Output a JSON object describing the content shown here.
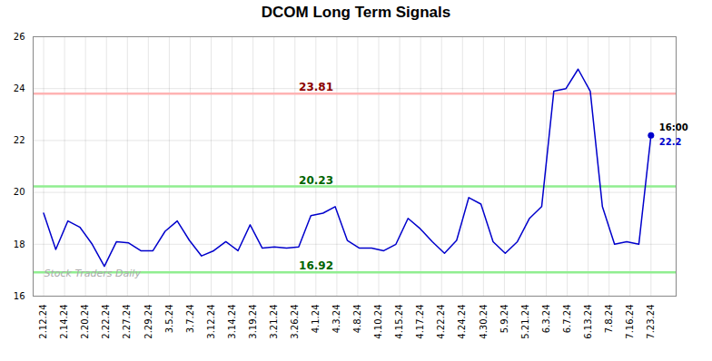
{
  "chart_data": {
    "type": "line",
    "title": "DCOM Long Term Signals",
    "x": [
      0,
      0.58,
      1.16,
      1.74,
      2.32,
      2.9,
      3.48,
      4.06,
      4.64,
      5.22,
      5.8,
      6.38,
      6.96,
      7.54,
      8.12,
      8.7,
      9.28,
      9.86,
      10.44,
      11.02,
      11.6,
      12.18,
      12.76,
      13.34,
      13.92,
      14.5,
      15.08,
      15.66,
      16.24,
      16.82,
      17.4,
      17.98,
      18.56,
      19.14,
      19.72,
      20.3,
      20.88,
      21.46,
      22.04,
      22.62,
      23.2,
      23.78,
      24.36,
      24.94,
      25.52,
      26.1,
      26.68,
      27.26,
      27.84,
      28.42,
      29
    ],
    "values": [
      19.2,
      17.8,
      18.9,
      18.65,
      18.0,
      17.15,
      18.1,
      18.05,
      17.75,
      17.75,
      18.5,
      18.9,
      18.15,
      17.55,
      17.75,
      18.1,
      17.75,
      18.75,
      17.85,
      17.9,
      17.85,
      17.9,
      19.1,
      19.2,
      19.45,
      18.15,
      17.85,
      17.85,
      17.75,
      18.0,
      19.0,
      18.6,
      18.1,
      17.65,
      18.15,
      19.8,
      19.55,
      18.1,
      17.65,
      18.1,
      19.0,
      19.45,
      23.9,
      24.0,
      24.75,
      23.9,
      19.45,
      18.0,
      18.1,
      18.0,
      22.2
    ],
    "color": "#0000cc",
    "xlim": [
      -0.5,
      30.2
    ],
    "xticks": [
      {
        "value": 0,
        "label": "2.12.24"
      },
      {
        "value": 1,
        "label": "2.14.24"
      },
      {
        "value": 2,
        "label": "2.20.24"
      },
      {
        "value": 3,
        "label": "2.22.24"
      },
      {
        "value": 4,
        "label": "2.27.24"
      },
      {
        "value": 5,
        "label": "2.29.24"
      },
      {
        "value": 6,
        "label": "3.5.24"
      },
      {
        "value": 7,
        "label": "3.7.24"
      },
      {
        "value": 8,
        "label": "3.12.24"
      },
      {
        "value": 9,
        "label": "3.14.24"
      },
      {
        "value": 10,
        "label": "3.19.24"
      },
      {
        "value": 11,
        "label": "3.21.24"
      },
      {
        "value": 12,
        "label": "3.26.24"
      },
      {
        "value": 13,
        "label": "4.1.24"
      },
      {
        "value": 14,
        "label": "4.3.24"
      },
      {
        "value": 15,
        "label": "4.8.24"
      },
      {
        "value": 16,
        "label": "4.10.24"
      },
      {
        "value": 17,
        "label": "4.15.24"
      },
      {
        "value": 18,
        "label": "4.17.24"
      },
      {
        "value": 19,
        "label": "4.22.24"
      },
      {
        "value": 20,
        "label": "4.24.24"
      },
      {
        "value": 21,
        "label": "4.30.24"
      },
      {
        "value": 22,
        "label": "5.9.24"
      },
      {
        "value": 23,
        "label": "5.21.24"
      },
      {
        "value": 24,
        "label": "6.3.24"
      },
      {
        "value": 25,
        "label": "6.7.24"
      },
      {
        "value": 26,
        "label": "6.13.24"
      },
      {
        "value": 27,
        "label": "7.8.24"
      },
      {
        "value": 28,
        "label": "7.16.24"
      },
      {
        "value": 29,
        "label": "7.23.24"
      }
    ],
    "ylim": [
      16,
      26
    ],
    "yticks": [
      16,
      18,
      20,
      22,
      24,
      26
    ],
    "grid": true,
    "levels": [
      {
        "value": 23.81,
        "color": "#ffb3b3",
        "label_color": "#8b0000"
      },
      {
        "value": 20.23,
        "color": "#90ee90",
        "label_color": "#006400"
      },
      {
        "value": 16.92,
        "color": "#90ee90",
        "label_color": "#006400"
      }
    ],
    "last_point_annotations": [
      {
        "text": "16:00",
        "color": "#000000"
      },
      {
        "text": "22.2",
        "color": "#0000cc"
      }
    ],
    "watermark": {
      "text": "Stock Traders Daily",
      "color": "#aaaaaa"
    }
  }
}
